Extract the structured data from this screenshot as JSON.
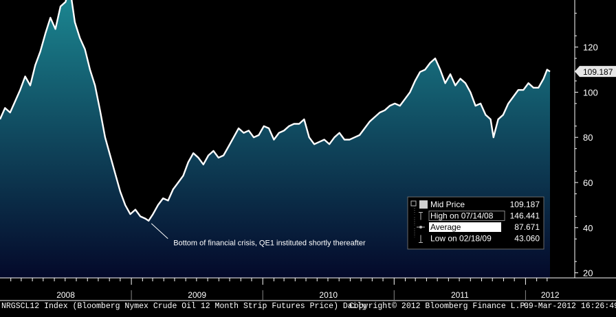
{
  "chart_data": {
    "type": "area",
    "series": [
      {
        "name": "Mid Price",
        "x": [
          "2008-01-02",
          "2008-01-16",
          "2008-01-30",
          "2008-02-13",
          "2008-02-27",
          "2008-03-12",
          "2008-03-26",
          "2008-04-09",
          "2008-04-23",
          "2008-05-07",
          "2008-05-21",
          "2008-06-04",
          "2008-06-18",
          "2008-07-02",
          "2008-07-14",
          "2008-07-28",
          "2008-08-11",
          "2008-08-25",
          "2008-09-08",
          "2008-09-22",
          "2008-10-06",
          "2008-10-20",
          "2008-11-03",
          "2008-11-17",
          "2008-12-01",
          "2008-12-15",
          "2008-12-29",
          "2009-01-12",
          "2009-01-26",
          "2009-02-09",
          "2009-02-18",
          "2009-03-02",
          "2009-03-16",
          "2009-03-30",
          "2009-04-13",
          "2009-04-27",
          "2009-05-11",
          "2009-05-25",
          "2009-06-08",
          "2009-06-22",
          "2009-07-06",
          "2009-07-20",
          "2009-08-03",
          "2009-08-17",
          "2009-08-31",
          "2009-09-14",
          "2009-09-28",
          "2009-10-12",
          "2009-10-26",
          "2009-11-09",
          "2009-11-23",
          "2009-12-07",
          "2009-12-21",
          "2010-01-04",
          "2010-01-18",
          "2010-02-01",
          "2010-02-15",
          "2010-03-01",
          "2010-03-15",
          "2010-03-29",
          "2010-04-12",
          "2010-04-26",
          "2010-05-10",
          "2010-05-24",
          "2010-06-07",
          "2010-06-21",
          "2010-07-05",
          "2010-07-19",
          "2010-08-02",
          "2010-08-16",
          "2010-08-30",
          "2010-09-13",
          "2010-09-27",
          "2010-10-11",
          "2010-10-25",
          "2010-11-08",
          "2010-11-22",
          "2010-12-06",
          "2010-12-20",
          "2011-01-03",
          "2011-01-17",
          "2011-01-31",
          "2011-02-14",
          "2011-02-28",
          "2011-03-14",
          "2011-03-28",
          "2011-04-11",
          "2011-04-25",
          "2011-05-09",
          "2011-05-23",
          "2011-06-06",
          "2011-06-20",
          "2011-07-04",
          "2011-07-18",
          "2011-08-01",
          "2011-08-15",
          "2011-08-29",
          "2011-09-12",
          "2011-09-26",
          "2011-10-04",
          "2011-10-17",
          "2011-10-31",
          "2011-11-14",
          "2011-11-28",
          "2011-12-12",
          "2011-12-26",
          "2012-01-09",
          "2012-01-23",
          "2012-02-06",
          "2012-02-20",
          "2012-03-01",
          "2012-03-09"
        ],
        "values": [
          88,
          93,
          91,
          96,
          101,
          107,
          103,
          112,
          118,
          126,
          133,
          128,
          138,
          140,
          146.4,
          131,
          124,
          119,
          110,
          103,
          92,
          80,
          72,
          64,
          56,
          50,
          46,
          48,
          45,
          44,
          43.06,
          46,
          50,
          53,
          52,
          57,
          60,
          63,
          69,
          73,
          71,
          68,
          72,
          74,
          71,
          72,
          76,
          80,
          84,
          82,
          83,
          80,
          81,
          85,
          84,
          79,
          82,
          83,
          85,
          86,
          86,
          88,
          80,
          77,
          78,
          79,
          77,
          80,
          82,
          79,
          79,
          80,
          81,
          84,
          87,
          89,
          91,
          92,
          94,
          95,
          94,
          97,
          100,
          105,
          109,
          110,
          113,
          115,
          110,
          104,
          108,
          103,
          106,
          104,
          100,
          94,
          95,
          90,
          88,
          80,
          88,
          90,
          95,
          98,
          101,
          101,
          104,
          102,
          102,
          106,
          110,
          109.187
        ]
      }
    ],
    "ylim": [
      20,
      150
    ],
    "yticks": [
      20,
      40,
      60,
      80,
      100,
      120
    ],
    "xtick_labels": [
      "2008",
      "2009",
      "2010",
      "2011",
      "2012"
    ],
    "grid": false,
    "last_price_label": "109.187",
    "annotations": [
      {
        "text": "Bottom of financial crisis, QE1 instituted shortly thereafter",
        "x": "2009-02-18",
        "y": 43.06
      }
    ],
    "legend": {
      "placement": "bottom-right",
      "entries": [
        {
          "label": "Mid Price",
          "value": "109.187"
        },
        {
          "label": "High on 07/14/08",
          "value": "146.441"
        },
        {
          "label": "Average",
          "value": "87.671"
        },
        {
          "label": "Low on 02/18/09",
          "value": "43.060"
        }
      ]
    },
    "colors": {
      "line": "#ffffff",
      "fill_top": "#1c8a94",
      "fill_bottom": "#04092a",
      "background": "#000000"
    }
  },
  "footer": {
    "left": "NRGSCL12 Index (Bloomberg Nymex Crude Oil 12 Month Strip Futures Price)  Daily",
    "center": "Copyright© 2012 Bloomberg Finance L.P.",
    "right": "09-Mar-2012 16:26:49"
  }
}
